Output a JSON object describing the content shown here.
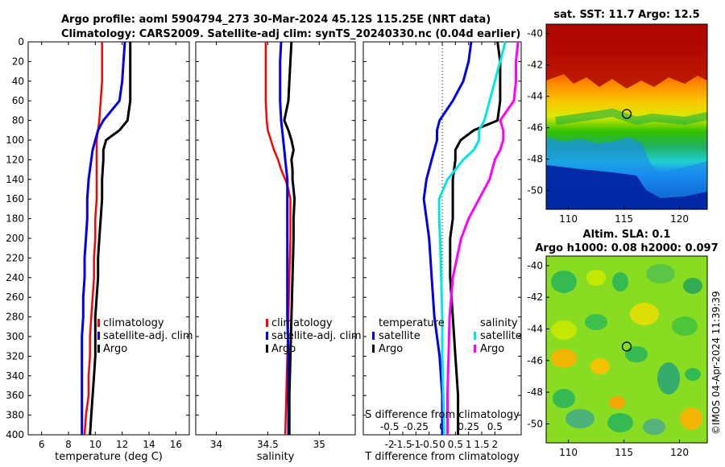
{
  "titles": {
    "line1": "Argo profile: aoml 5904794_273 30-Mar-2024 45.12S 115.25E (NRT data)",
    "line2": "Climatology: CARS2009. Satellite-adj clim: synTS_20240330.nc (0.04d earlier)"
  },
  "watermark": "©IMOS 04-Apr-2024 11:39:39",
  "colors": {
    "clim": "#ff0000",
    "sat": "#0000ee",
    "argo": "#000000",
    "cyan": "#00e5e5",
    "magenta": "#ff00ff"
  },
  "chart_data": [
    {
      "type": "line",
      "panel": "temperature",
      "xlabel": "temperature (deg C)",
      "xlim": [
        5,
        17
      ],
      "xticks": [
        "6",
        "8",
        "10",
        "12",
        "14",
        "16"
      ],
      "xtick_values": [
        6,
        8,
        10,
        12,
        14,
        16
      ],
      "ylim": [
        0,
        400
      ],
      "yticks": [
        "0",
        "20",
        "40",
        "60",
        "80",
        "100",
        "120",
        "140",
        "160",
        "180",
        "200",
        "220",
        "240",
        "260",
        "280",
        "300",
        "320",
        "340",
        "360",
        "380",
        "400"
      ],
      "depth": [
        0,
        20,
        40,
        60,
        80,
        90,
        100,
        110,
        120,
        140,
        160,
        180,
        200,
        220,
        240,
        260,
        280,
        300,
        320,
        340,
        360,
        380,
        400
      ],
      "series": [
        {
          "name": "climatology",
          "color": "#ff0000",
          "values": [
            10.5,
            10.5,
            10.5,
            10.4,
            10.3,
            10.2,
            10.1,
            10.1,
            10.1,
            10.1,
            10.1,
            10.0,
            10.0,
            9.9,
            9.9,
            9.8,
            9.7,
            9.6,
            9.6,
            9.5,
            9.5,
            9.3,
            9.2
          ]
        },
        {
          "name": "satellite-adj. clim",
          "color": "#0000ee",
          "values": [
            12.2,
            12.1,
            12.0,
            11.8,
            10.6,
            10.2,
            10.0,
            9.8,
            9.7,
            9.5,
            9.4,
            9.4,
            9.3,
            9.2,
            9.2,
            9.1,
            9.1,
            9.0,
            9.0,
            9.0,
            9.0,
            9.0,
            9.0
          ]
        },
        {
          "name": "Argo",
          "color": "#000000",
          "values": [
            12.6,
            12.6,
            12.6,
            12.6,
            12.4,
            11.8,
            10.8,
            10.6,
            10.6,
            10.5,
            10.5,
            10.4,
            10.3,
            10.2,
            10.2,
            10.1,
            10.0,
            10.0,
            10.0,
            9.9,
            9.8,
            9.7,
            9.6
          ]
        }
      ],
      "legend": [
        "climatology",
        "satellite-adj. clim",
        "Argo"
      ]
    },
    {
      "type": "line",
      "panel": "salinity",
      "xlabel": "salinity",
      "xlim": [
        33.8,
        35.35
      ],
      "xticks": [
        "34",
        "34.5",
        "35"
      ],
      "xtick_values": [
        34,
        34.5,
        35
      ],
      "ylim": [
        0,
        400
      ],
      "depth": [
        0,
        20,
        40,
        60,
        80,
        90,
        100,
        110,
        120,
        130,
        140,
        150,
        160,
        180,
        200,
        240,
        280,
        320,
        360,
        400
      ],
      "series": [
        {
          "name": "climatology",
          "color": "#ff0000",
          "values": [
            34.48,
            34.48,
            34.48,
            34.48,
            34.49,
            34.5,
            34.53,
            34.56,
            34.6,
            34.63,
            34.67,
            34.7,
            34.72,
            34.72,
            34.72,
            34.71,
            34.7,
            34.69,
            34.68,
            34.67
          ]
        },
        {
          "name": "satellite-adj. clim",
          "color": "#0000ee",
          "values": [
            34.63,
            34.62,
            34.62,
            34.62,
            34.63,
            34.64,
            34.65,
            34.66,
            34.67,
            34.68,
            34.69,
            34.69,
            34.69,
            34.69,
            34.69,
            34.69,
            34.69,
            34.7,
            34.7,
            34.7
          ]
        },
        {
          "name": "Argo",
          "color": "#000000",
          "values": [
            34.73,
            34.72,
            34.71,
            34.7,
            34.66,
            34.7,
            34.73,
            34.75,
            34.73,
            34.74,
            34.74,
            34.75,
            34.76,
            34.75,
            34.75,
            34.74,
            34.73,
            34.72,
            34.71,
            34.71
          ]
        }
      ],
      "legend": [
        "climatology",
        "satellite-adj. clim",
        "Argo"
      ]
    },
    {
      "type": "line",
      "panel": "difference",
      "xlabel": "T difference from climatology",
      "xlabel_top": "S difference from climatology",
      "xlim": [
        -3,
        3
      ],
      "xticks": [
        "-2",
        "-1.5",
        "-1",
        "-0.5",
        "0",
        "0.5",
        "1",
        "1.5",
        "2"
      ],
      "xtick_values": [
        -2,
        -1.5,
        -1,
        -0.5,
        0,
        0.5,
        1,
        1.5,
        2
      ],
      "s_xticks": [
        "-0.5",
        "-0.25",
        "0",
        "0.25",
        "0.5"
      ],
      "s_xtick_values": [
        -0.5,
        -0.25,
        0,
        0.25,
        0.5
      ],
      "ylim": [
        0,
        400
      ],
      "depth": [
        0,
        20,
        40,
        60,
        80,
        90,
        100,
        110,
        120,
        140,
        160,
        180,
        200,
        240,
        280,
        320,
        360,
        400
      ],
      "series": [
        {
          "name": "temperature satellite",
          "color": "#0000ee",
          "values": [
            1.1,
            1.0,
            0.8,
            0.4,
            -0.1,
            -0.2,
            -0.2,
            -0.3,
            -0.4,
            -0.6,
            -0.7,
            -0.6,
            -0.5,
            -0.4,
            -0.3,
            -0.1,
            0.0,
            0.0
          ]
        },
        {
          "name": "temperature Argo",
          "color": "#000000",
          "values": [
            2.1,
            2.2,
            2.2,
            2.2,
            2.1,
            1.2,
            0.7,
            0.5,
            0.5,
            0.4,
            0.4,
            0.4,
            0.3,
            0.3,
            0.4,
            0.5,
            0.6,
            0.6
          ]
        },
        {
          "name": "salinity satellite",
          "color": "#00e5e5",
          "values": [
            0.6,
            0.55,
            0.5,
            0.45,
            0.4,
            0.35,
            0.35,
            0.3,
            0.2,
            0.05,
            -0.03,
            -0.03,
            -0.02,
            -0.01,
            0.0,
            0.0,
            0.01,
            0.02
          ]
        },
        {
          "name": "salinity Argo",
          "color": "#ff00ff",
          "values": [
            0.72,
            0.7,
            0.7,
            0.68,
            0.55,
            0.58,
            0.58,
            0.55,
            0.5,
            0.45,
            0.35,
            0.25,
            0.18,
            0.1,
            0.07,
            0.06,
            0.05,
            0.05
          ]
        }
      ],
      "legend_temperature": {
        "header": "temperature",
        "items": [
          "satellite",
          "Argo"
        ]
      },
      "legend_salinity": {
        "header": "salinity",
        "items": [
          "satellite",
          "Argo"
        ]
      }
    },
    {
      "type": "heatmap",
      "panel": "sat. SST map",
      "title": "sat. SST: 11.7 Argo: 12.5",
      "xticks": [
        "110",
        "115",
        "120"
      ],
      "xtick_values": [
        110,
        115,
        120
      ],
      "yticks": [
        "-40",
        "-42",
        "-44",
        "-46",
        "-48",
        "-50"
      ],
      "ytick_values": [
        -40,
        -42,
        -44,
        -46,
        -48,
        -50
      ],
      "xlim": [
        108,
        122.5
      ],
      "ylim": [
        -51.2,
        -39.4
      ],
      "marker": {
        "lon": 115.25,
        "lat": -45.12
      }
    },
    {
      "type": "heatmap",
      "panel": "altimetry SLA map",
      "title1": "Altim. SLA: 0.1",
      "title2": "Argo h1000: 0.08 h2000: 0.097",
      "xticks": [
        "110",
        "115",
        "120"
      ],
      "xtick_values": [
        110,
        115,
        120
      ],
      "yticks": [
        "-40",
        "-42",
        "-44",
        "-46",
        "-48",
        "-50"
      ],
      "ytick_values": [
        -40,
        -42,
        -44,
        -46,
        -48,
        -50
      ],
      "xlim": [
        108,
        122.5
      ],
      "ylim": [
        -51.2,
        -39.4
      ],
      "marker": {
        "lon": 115.25,
        "lat": -45.12
      }
    }
  ]
}
